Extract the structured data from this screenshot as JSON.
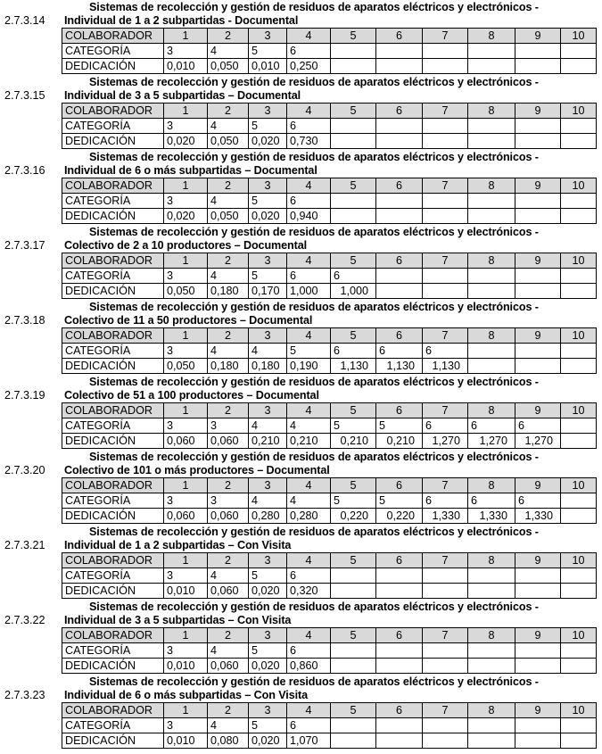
{
  "labels": {
    "colaborador": "COLABORADOR",
    "categoria": "CATEGORÍA",
    "dedicacion": "DEDICACIÓN"
  },
  "columns": [
    "1",
    "2",
    "3",
    "4",
    "5",
    "6",
    "7",
    "8",
    "9",
    "10"
  ],
  "blocks": [
    {
      "number": "2.7.3.14",
      "title1": "Sistemas de recolección y gestión de residuos de aparatos eléctricos y electrónicos -",
      "title2": "Individual de 1 a 2 subpartidas - Documental",
      "categoria": [
        "3",
        "4",
        "5",
        "6",
        "",
        "",
        "",
        "",
        "",
        ""
      ],
      "dedicacion": [
        "0,010",
        "0,050",
        "0,010",
        "0,250",
        "",
        "",
        "",
        "",
        "",
        ""
      ]
    },
    {
      "number": "2.7.3.15",
      "title1": "Sistemas de recolección y gestión de residuos de aparatos eléctricos y electrónicos -",
      "title2": "Individual de 3 a 5 subpartidas – Documental",
      "categoria": [
        "3",
        "4",
        "5",
        "6",
        "",
        "",
        "",
        "",
        "",
        ""
      ],
      "dedicacion": [
        "0,020",
        "0,050",
        "0,020",
        "0,730",
        "",
        "",
        "",
        "",
        "",
        ""
      ]
    },
    {
      "number": "2.7.3.16",
      "title1": "Sistemas de recolección y gestión de residuos de aparatos eléctricos y electrónicos -",
      "title2": "Individual de 6 o más subpartidas – Documental",
      "categoria": [
        "3",
        "4",
        "5",
        "6",
        "",
        "",
        "",
        "",
        "",
        ""
      ],
      "dedicacion": [
        "0,020",
        "0,050",
        "0,020",
        "0,940",
        "",
        "",
        "",
        "",
        "",
        ""
      ]
    },
    {
      "number": "2.7.3.17",
      "title1": "Sistemas de recolección y gestión de residuos de aparatos eléctricos y electrónicos -",
      "title2": "Colectivo de 2 a 10 productores – Documental",
      "categoria": [
        "3",
        "4",
        "5",
        "6",
        "6",
        "",
        "",
        "",
        "",
        ""
      ],
      "dedicacion": [
        "0,050",
        "0,180",
        "0,170",
        "1,000",
        "1,000",
        "",
        "",
        "",
        "",
        ""
      ]
    },
    {
      "number": "2.7.3.18",
      "title1": "Sistemas de recolección y gestión de residuos de aparatos eléctricos y electrónicos -",
      "title2": "Colectivo de 11 a 50 productores – Documental",
      "categoria": [
        "3",
        "4",
        "4",
        "5",
        "6",
        "6",
        "6",
        "",
        "",
        ""
      ],
      "dedicacion": [
        "0,050",
        "0,180",
        "0,180",
        "0,190",
        "1,130",
        "1,130",
        "1,130",
        "",
        "",
        ""
      ]
    },
    {
      "number": "2.7.3.19",
      "title1": "Sistemas de recolección y gestión de residuos de aparatos eléctricos y electrónicos -",
      "title2": "Colectivo de 51 a 100 productores – Documental",
      "categoria": [
        "3",
        "3",
        "4",
        "4",
        "5",
        "5",
        "6",
        "6",
        "6",
        ""
      ],
      "dedicacion": [
        "0,060",
        "0,060",
        "0,210",
        "0,210",
        "0,210",
        "0,210",
        "1,270",
        "1,270",
        "1,270",
        ""
      ]
    },
    {
      "number": "2.7.3.20",
      "title1": "Sistemas de recolección y gestión de residuos de aparatos eléctricos y electrónicos -",
      "title2": "Colectivo de 101 o más productores – Documental",
      "categoria": [
        "3",
        "3",
        "4",
        "4",
        "5",
        "5",
        "6",
        "6",
        "6",
        ""
      ],
      "dedicacion": [
        "0,060",
        "0,060",
        "0,280",
        "0,280",
        "0,220",
        "0,220",
        "1,330",
        "1,330",
        "1,330",
        ""
      ]
    },
    {
      "number": "2.7.3.21",
      "title1": "Sistemas de recolección y gestión de residuos de aparatos eléctricos y electrónicos -",
      "title2": "Individual de 1 a 2 subpartidas – Con Visita",
      "categoria": [
        "3",
        "4",
        "5",
        "6",
        "",
        "",
        "",
        "",
        "",
        ""
      ],
      "dedicacion": [
        "0,010",
        "0,060",
        "0,020",
        "0,320",
        "",
        "",
        "",
        "",
        "",
        ""
      ]
    },
    {
      "number": "2.7.3.22",
      "title1": "Sistemas de recolección y gestión de residuos de aparatos eléctricos y electrónicos -",
      "title2": "Individual de 3 a 5 subpartidas – Con Visita",
      "categoria": [
        "3",
        "4",
        "5",
        "6",
        "",
        "",
        "",
        "",
        "",
        ""
      ],
      "dedicacion": [
        "0,010",
        "0,060",
        "0,020",
        "0,860",
        "",
        "",
        "",
        "",
        "",
        ""
      ]
    },
    {
      "number": "2.7.3.23",
      "title1": "Sistemas de recolección y gestión de residuos de aparatos eléctricos y electrónicos -",
      "title2": "Individual de 6 o más subpartidas – Con Visita",
      "categoria": [
        "3",
        "4",
        "5",
        "6",
        "",
        "",
        "",
        "",
        "",
        ""
      ],
      "dedicacion": [
        "0,010",
        "0,080",
        "0,020",
        "1,070",
        "",
        "",
        "",
        "",
        "",
        ""
      ]
    }
  ]
}
